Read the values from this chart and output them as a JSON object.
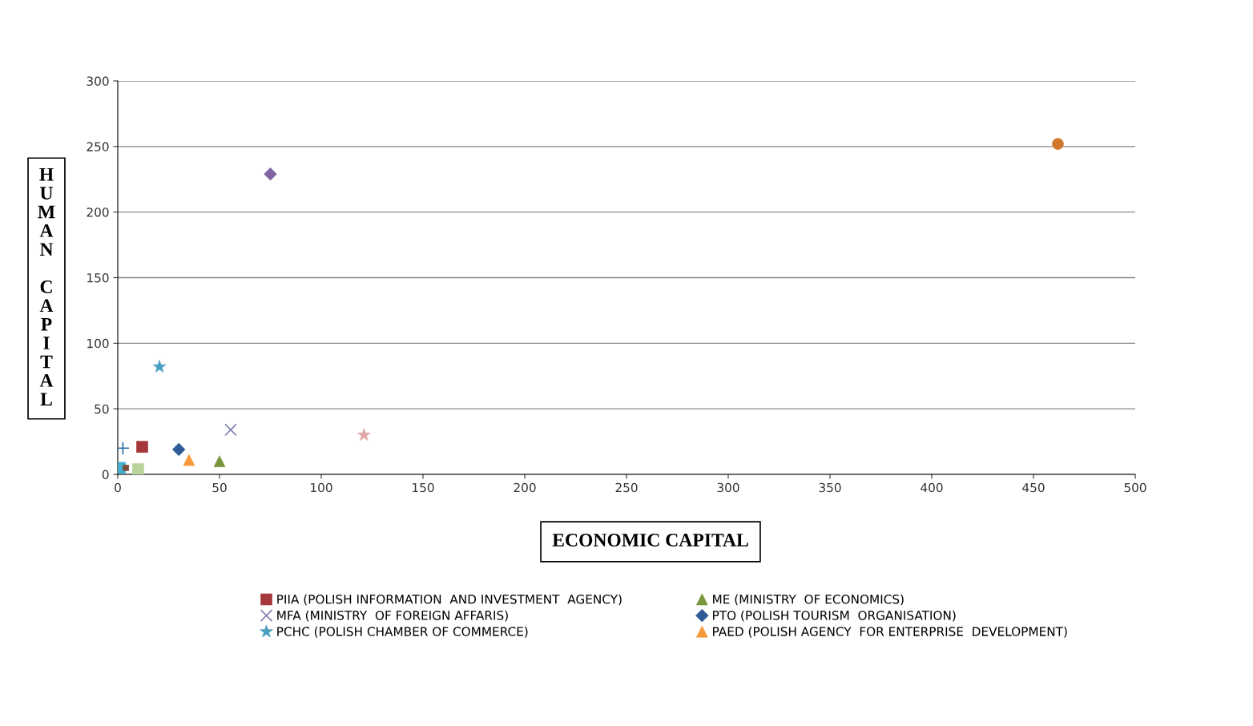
{
  "chart_data": {
    "type": "scatter",
    "xlabel": "ECONOMIC CAPITAL",
    "ylabel": "H\nU\nM\nA\nN\n\nC\nA\nP\nI\nT\nA\nL",
    "xlim": [
      0,
      500
    ],
    "xticks": [
      0,
      50,
      100,
      150,
      200,
      250,
      300,
      350,
      400,
      450,
      500
    ],
    "ylim": [
      0,
      300
    ],
    "yticks": [
      0,
      50,
      100,
      150,
      200,
      250,
      300
    ],
    "grid": "y",
    "legend": "bottom",
    "series": [
      {
        "name": "PIIA (POLISH INFORMATION  AND INVESTMENT  AGENCY)",
        "color": "#a5373a",
        "marker": "square",
        "x": [
          12
        ],
        "values": [
          21
        ]
      },
      {
        "name": "MFA (MINISTRY  OF FOREIGN AFFARIS)",
        "color": "#7f7fb2",
        "marker": "cross",
        "x": [
          55.5
        ],
        "values": [
          34
        ]
      },
      {
        "name": "PCHC (POLISH CHAMBER OF COMMERCE)",
        "color": "#4a9fc0",
        "marker": "star",
        "x": [
          20.5
        ],
        "values": [
          82
        ]
      },
      {
        "color": "#2a6fa8",
        "marker": "plus",
        "x": [
          2.5
        ],
        "values": [
          20
        ]
      },
      {
        "color": "#b9d49a",
        "marker": "square",
        "x": [
          10
        ],
        "values": [
          4
        ]
      },
      {
        "color": "#46aed0",
        "marker": "square",
        "x": [
          1
        ],
        "values": [
          5
        ]
      },
      {
        "name": "ME (MINISTRY  OF ECONOMICS)",
        "color": "#77963b",
        "marker": "triangle",
        "x": [
          50
        ],
        "values": [
          10
        ]
      },
      {
        "name": "PTO (POLISH TOURISM  ORGANISATION)",
        "color": "#2f5c96",
        "marker": "diamond",
        "x": [
          30
        ],
        "values": [
          19
        ]
      },
      {
        "color": "#d0772b",
        "marker": "circle",
        "x": [
          462
        ],
        "values": [
          252
        ]
      },
      {
        "color": "#7b4d3a",
        "marker": "square",
        "x": [
          4
        ],
        "values": [
          5
        ]
      },
      {
        "color": "#8064a2",
        "marker": "diamond",
        "x": [
          75
        ],
        "values": [
          229
        ]
      },
      {
        "name": "PAED (POLISH AGENCY  FOR ENTERPRISE  DEVELOPMENT)",
        "color": "#f59a3a",
        "marker": "triangle",
        "x": [
          35
        ],
        "values": [
          11
        ]
      },
      {
        "color": "#e1a6a5",
        "marker": "star",
        "x": [
          121
        ],
        "values": [
          30
        ]
      }
    ]
  }
}
